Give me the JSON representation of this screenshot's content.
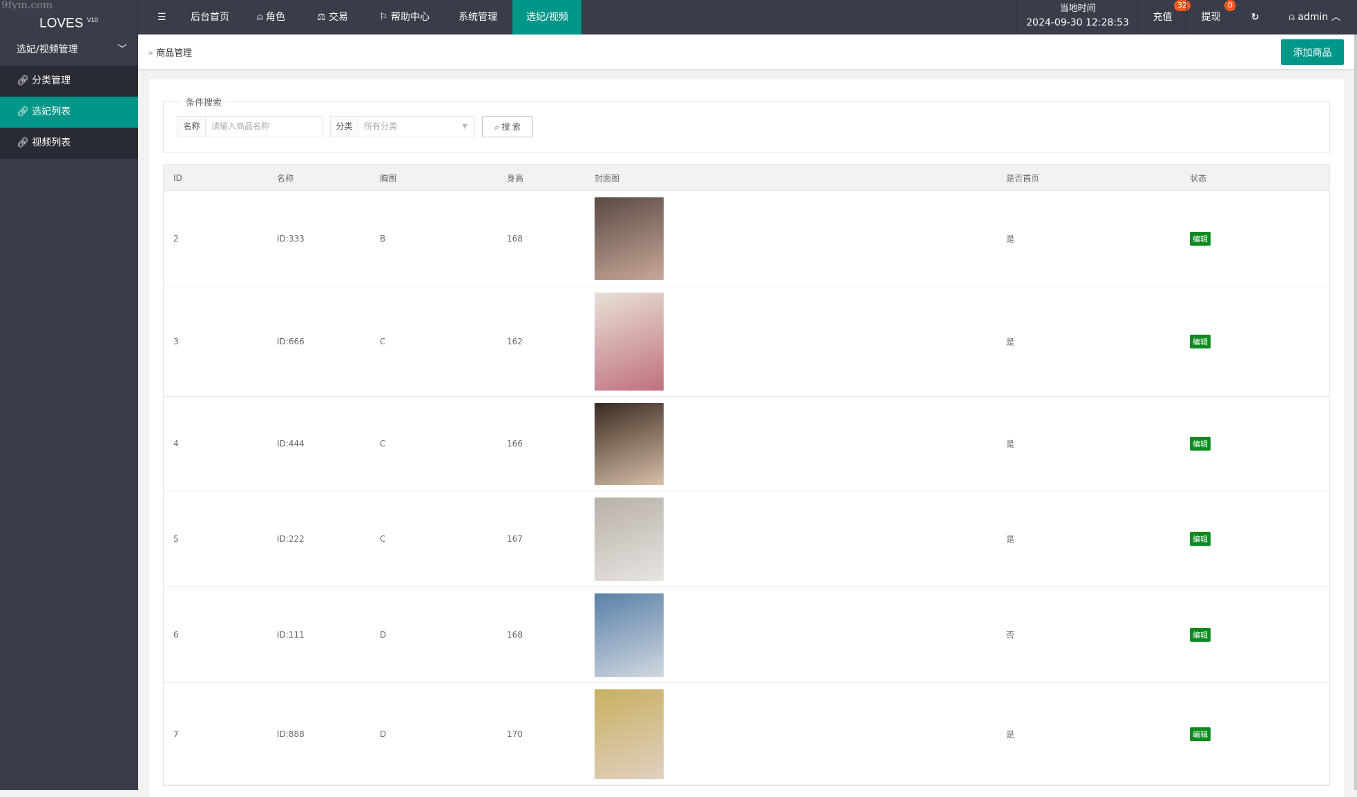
{
  "header": {
    "logo": "LOVES",
    "logo_version": "V10",
    "watermark": "9fym.com",
    "nav": [
      "后台首页",
      "角色",
      "交易",
      "帮助中心",
      "系统管理",
      "选妃/视频"
    ],
    "active_nav": "选妃/视频",
    "time_label": "当地时间",
    "time_value": "2024-09-30 12:28:53",
    "recharge": "充值",
    "recharge_count": "32",
    "withdraw": "提现",
    "withdraw_count": "0",
    "user": "admin"
  },
  "sidebar": {
    "group": "选妃/视频管理",
    "items": [
      "分类管理",
      "选妃列表",
      "视频列表"
    ],
    "active": "选妃列表"
  },
  "breadcrumb": "商品管理",
  "add_button": "添加商品",
  "search": {
    "legend": "条件搜索",
    "name_label": "名称",
    "name_placeholder": "请输入商品名称",
    "cat_label": "分类",
    "cat_value": "所有分类",
    "button": "搜 索"
  },
  "table": {
    "headers": [
      "ID",
      "名称",
      "胸围",
      "身高",
      "封面图",
      "是否首页",
      "状态"
    ],
    "rows": [
      {
        "id": "2",
        "name": "ID:333",
        "bust": "B",
        "height": "168",
        "home": "是",
        "action": "编辑"
      },
      {
        "id": "3",
        "name": "ID:666",
        "bust": "C",
        "height": "162",
        "home": "是",
        "action": "编辑"
      },
      {
        "id": "4",
        "name": "ID:444",
        "bust": "C",
        "height": "166",
        "home": "是",
        "action": "编辑"
      },
      {
        "id": "5",
        "name": "ID:222",
        "bust": "C",
        "height": "167",
        "home": "是",
        "action": "编辑"
      },
      {
        "id": "6",
        "name": "ID:111",
        "bust": "D",
        "height": "168",
        "home": "否",
        "action": "编辑"
      },
      {
        "id": "7",
        "name": "ID:888",
        "bust": "D",
        "height": "170",
        "home": "是",
        "action": "编辑"
      }
    ]
  },
  "colors": {
    "accent": "#009688",
    "header": "#393d49",
    "edit": "#0a8a1f",
    "badge": "#ff5722"
  }
}
